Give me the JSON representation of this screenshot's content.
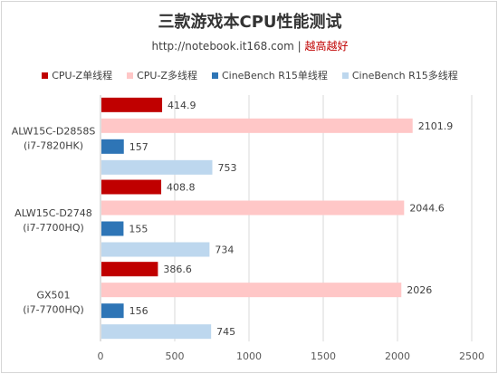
{
  "chart_data": {
    "type": "bar",
    "orientation": "horizontal",
    "title": "三款游戏本CPU性能测试",
    "subtitle_url": "http://notebook.it168.com",
    "subtitle_sep": "|",
    "subtitle_tag": "越高越好",
    "categories": [
      {
        "name": "ALW15C-D2858S",
        "cpu": "(i7-7820HK)"
      },
      {
        "name": "ALW15C-D2748",
        "cpu": "(i7-7700HQ)"
      },
      {
        "name": "GX501",
        "cpu": "(i7-7700HQ)"
      }
    ],
    "series": [
      {
        "name": "CPU-Z单线程",
        "color": "#c00000",
        "values": [
          414.9,
          408.8,
          386.6
        ]
      },
      {
        "name": "CPU-Z多线程",
        "color": "#ffc7c7",
        "values": [
          2101.9,
          2044.6,
          2026
        ]
      },
      {
        "name": "CineBench R15单线程",
        "color": "#2e75b6",
        "values": [
          157,
          155,
          156
        ]
      },
      {
        "name": "CineBench R15多线程",
        "color": "#bdd7ee",
        "values": [
          753,
          734,
          745
        ]
      }
    ],
    "xlim": [
      0,
      2500
    ],
    "xticks": [
      0,
      500,
      1000,
      1500,
      2000,
      2500
    ],
    "grid": "vertical",
    "legend_position": "top"
  }
}
